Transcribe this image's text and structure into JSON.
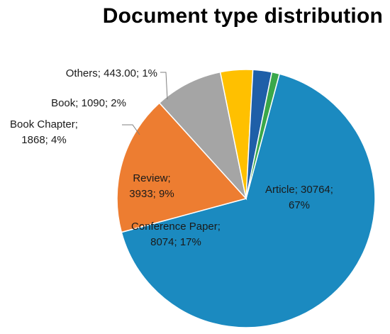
{
  "chart_data": {
    "type": "pie",
    "title": "Document type distribution",
    "slices": [
      {
        "name": "Article",
        "value": 30764,
        "percent": "67%",
        "label_line1": "Article; 30764;",
        "label_line2": "67%",
        "color": "#1b8ac0"
      },
      {
        "name": "Conference Paper",
        "value": 8074,
        "percent": "17%",
        "label_line1": "Conference Paper;",
        "label_line2": "8074; 17%",
        "color": "#ed7d31"
      },
      {
        "name": "Review",
        "value": 3933,
        "percent": "9%",
        "label_line1": "Review;",
        "label_line2": "3933; 9%",
        "color": "#a5a5a5"
      },
      {
        "name": "Book Chapter",
        "value": 1868,
        "percent": "4%",
        "label_line1": "Book Chapter;",
        "label_line2": "1868; 4%",
        "color": "#ffc000"
      },
      {
        "name": "Book",
        "value": 1090,
        "percent": "2%",
        "label_line1": "Book; 1090; 2%",
        "label_line2": "",
        "color": "#1f5fa8"
      },
      {
        "name": "Others",
        "value": 443.0,
        "percent": "1%",
        "label_line1": "Others; 443.00; 1%",
        "label_line2": "",
        "color": "#3aa84a"
      }
    ]
  }
}
